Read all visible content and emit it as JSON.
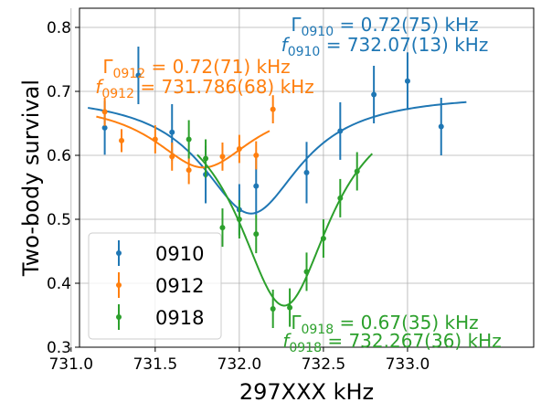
{
  "chart_data": {
    "type": "scatter",
    "xlabel": "297XXX kHz",
    "ylabel": "Two-body survival",
    "xlim": [
      731.05,
      733.75
    ],
    "ylim": [
      0.3,
      0.83
    ],
    "xticks": [
      "731.0",
      "731.5",
      "732.0",
      "732.5",
      "733.0"
    ],
    "yticks": [
      "0.3",
      "0.4",
      "0.5",
      "0.6",
      "0.7",
      "0.8"
    ],
    "grid": true,
    "legend_position": "lower-left",
    "series": [
      {
        "name": "0910",
        "color": "#1f77b4",
        "points": [
          {
            "x": 731.2,
            "y": 0.643,
            "err": 0.042
          },
          {
            "x": 731.4,
            "y": 0.725,
            "err": 0.045
          },
          {
            "x": 731.6,
            "y": 0.636,
            "err": 0.044
          },
          {
            "x": 731.8,
            "y": 0.57,
            "err": 0.045
          },
          {
            "x": 732.0,
            "y": 0.515,
            "err": 0.04
          },
          {
            "x": 732.1,
            "y": 0.552,
            "err": 0.045
          },
          {
            "x": 732.4,
            "y": 0.573,
            "err": 0.048
          },
          {
            "x": 732.6,
            "y": 0.638,
            "err": 0.045
          },
          {
            "x": 732.8,
            "y": 0.695,
            "err": 0.045
          },
          {
            "x": 733.0,
            "y": 0.716,
            "err": 0.045
          },
          {
            "x": 733.2,
            "y": 0.645,
            "err": 0.045
          }
        ],
        "fit": {
          "center": 732.07,
          "fwhm": 0.72,
          "baseline": 0.697,
          "depth": 0.188,
          "x_range": [
            731.1,
            733.35
          ]
        }
      },
      {
        "name": "0912",
        "color": "#ff7f0e",
        "points": [
          {
            "x": 731.2,
            "y": 0.668,
            "err": 0.022
          },
          {
            "x": 731.3,
            "y": 0.623,
            "err": 0.018
          },
          {
            "x": 731.5,
            "y": 0.625,
            "err": 0.022
          },
          {
            "x": 731.6,
            "y": 0.598,
            "err": 0.022
          },
          {
            "x": 731.7,
            "y": 0.577,
            "err": 0.022
          },
          {
            "x": 731.9,
            "y": 0.598,
            "err": 0.022
          },
          {
            "x": 732.0,
            "y": 0.61,
            "err": 0.022
          },
          {
            "x": 732.1,
            "y": 0.6,
            "err": 0.022
          },
          {
            "x": 732.2,
            "y": 0.672,
            "err": 0.022
          }
        ],
        "fit": {
          "center": 731.786,
          "fwhm": 0.72,
          "baseline": 0.686,
          "depth": 0.105,
          "x_range": [
            731.15,
            732.18
          ]
        }
      },
      {
        "name": "0918",
        "color": "#2ca02c",
        "points": [
          {
            "x": 731.7,
            "y": 0.625,
            "err": 0.03
          },
          {
            "x": 731.8,
            "y": 0.595,
            "err": 0.03
          },
          {
            "x": 731.9,
            "y": 0.487,
            "err": 0.03
          },
          {
            "x": 732.0,
            "y": 0.5,
            "err": 0.03
          },
          {
            "x": 732.1,
            "y": 0.477,
            "err": 0.03
          },
          {
            "x": 732.2,
            "y": 0.36,
            "err": 0.03
          },
          {
            "x": 732.3,
            "y": 0.362,
            "err": 0.03
          },
          {
            "x": 732.4,
            "y": 0.418,
            "err": 0.03
          },
          {
            "x": 732.5,
            "y": 0.47,
            "err": 0.03
          },
          {
            "x": 732.6,
            "y": 0.533,
            "err": 0.03
          },
          {
            "x": 732.7,
            "y": 0.575,
            "err": 0.03
          }
        ],
        "fit": {
          "center": 732.267,
          "fwhm": 0.67,
          "baseline": 0.7,
          "depth": 0.335,
          "x_range": [
            731.75,
            732.79
          ]
        }
      }
    ],
    "annotations": [
      {
        "color": "#1f77b4",
        "main": "Γ",
        "sub": "0910",
        "rest": " = 0.72(75) kHz"
      },
      {
        "color": "#1f77b4",
        "main": "f",
        "sub": "0910",
        "rest": " = 732.07(13) kHz"
      },
      {
        "color": "#ff7f0e",
        "main": "Γ",
        "sub": "0912",
        "rest": " = 0.72(71) kHz"
      },
      {
        "color": "#ff7f0e",
        "main": "f",
        "sub": "0912",
        "rest": " = 731.786(68) kHz"
      },
      {
        "color": "#2ca02c",
        "main": "Γ",
        "sub": "0918",
        "rest": " = 0.67(35) kHz"
      },
      {
        "color": "#2ca02c",
        "main": "f",
        "sub": "0918",
        "rest": " = 732.267(36) kHz"
      }
    ]
  }
}
